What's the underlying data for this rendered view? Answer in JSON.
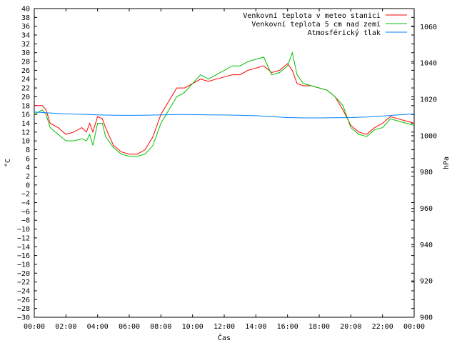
{
  "chart_data": {
    "type": "line",
    "title": "",
    "xlabel": "Čas",
    "ylabel": "°C",
    "y2label": "hPa",
    "x_ticks": [
      "00:00",
      "02:00",
      "04:00",
      "06:00",
      "08:00",
      "10:00",
      "12:00",
      "14:00",
      "16:00",
      "18:00",
      "20:00",
      "22:00",
      "00:00"
    ],
    "xlim": [
      0,
      24
    ],
    "ylim": [
      -30,
      40
    ],
    "y_ticks": [
      40,
      38,
      36,
      34,
      32,
      30,
      28,
      26,
      24,
      22,
      20,
      18,
      16,
      14,
      12,
      10,
      8,
      6,
      4,
      2,
      0,
      -2,
      -4,
      -6,
      -8,
      -10,
      -12,
      -14,
      -16,
      -18,
      -20,
      -22,
      -24,
      -26,
      -28,
      -30
    ],
    "y2lim": [
      900,
      1070
    ],
    "y2_ticks": [
      1060,
      1040,
      1020,
      1000,
      980,
      960,
      940,
      920,
      900
    ],
    "legend_position": "top-right",
    "grid": false,
    "colors": {
      "station": "#ff0000",
      "ground": "#00c000",
      "pressure": "#0080ff"
    },
    "series": [
      {
        "name": "Venkovní teplota v meteo stanici",
        "axis": "left",
        "x": [
          0,
          0.5,
          0.75,
          1,
          1.5,
          2,
          2.5,
          3,
          3.3,
          3.5,
          3.7,
          4,
          4.3,
          4.5,
          5,
          5.5,
          6,
          6.5,
          7,
          7.5,
          8,
          8.5,
          9,
          9.5,
          10,
          10.5,
          11,
          11.5,
          12,
          12.5,
          13,
          13.5,
          14,
          14.5,
          15,
          15.5,
          16,
          16.3,
          16.6,
          17,
          17.5,
          18,
          18.5,
          19,
          19.5,
          20,
          20.5,
          21,
          21.5,
          22,
          22.5,
          23,
          23.5,
          24
        ],
        "y": [
          18,
          18,
          17,
          14,
          13,
          11.5,
          12,
          13,
          12,
          14,
          12,
          15.5,
          15,
          13,
          9,
          7.5,
          7,
          7,
          8,
          11,
          16,
          19,
          22,
          22,
          23,
          24,
          23.5,
          24,
          24.5,
          25,
          25,
          26,
          26.5,
          27,
          25.5,
          26,
          27.5,
          26,
          23,
          22.5,
          22.5,
          22,
          21.5,
          20,
          17,
          13.5,
          12,
          11.5,
          13,
          14,
          15.5,
          15,
          14.5,
          14
        ]
      },
      {
        "name": "Venkovní teplota 5 cm nad zemí",
        "axis": "left",
        "x": [
          0,
          0.5,
          0.75,
          1,
          1.5,
          2,
          2.5,
          3,
          3.3,
          3.5,
          3.7,
          4,
          4.3,
          4.5,
          5,
          5.5,
          6,
          6.5,
          7,
          7.5,
          8,
          8.5,
          9,
          9.5,
          10,
          10.5,
          11,
          11.5,
          12,
          12.5,
          13,
          13.5,
          14,
          14.5,
          15,
          15.5,
          16,
          16.3,
          16.6,
          17,
          17.5,
          18,
          18.5,
          19,
          19.5,
          20,
          20.5,
          21,
          21.5,
          22,
          22.5,
          23,
          23.5,
          24
        ],
        "y": [
          16,
          17,
          16,
          13,
          11.5,
          10,
          10,
          10.5,
          10,
          11.5,
          9,
          14,
          14,
          11,
          8.5,
          7,
          6.5,
          6.5,
          7,
          9,
          14,
          17,
          20,
          21,
          23,
          25,
          24,
          25,
          26,
          27,
          27,
          28,
          28.5,
          29,
          25,
          25.5,
          27,
          30,
          25,
          23,
          22.5,
          22,
          21.5,
          20,
          18,
          13,
          11.5,
          11,
          12.5,
          13,
          15,
          14.5,
          14,
          13.5
        ]
      },
      {
        "name": "Atmosférický tlak",
        "axis": "right",
        "x": [
          0,
          1,
          2,
          3,
          4,
          5,
          6,
          7,
          8,
          9,
          10,
          11,
          12,
          13,
          14,
          15,
          16,
          17,
          18,
          19,
          20,
          21,
          22,
          23,
          24
        ],
        "y": [
          1013,
          1012.5,
          1012,
          1011.8,
          1011.5,
          1011.3,
          1011.2,
          1011.3,
          1011.5,
          1011.7,
          1011.6,
          1011.5,
          1011.4,
          1011.2,
          1011,
          1010.5,
          1010,
          1009.8,
          1009.8,
          1009.9,
          1010,
          1010.3,
          1010.8,
          1011.5,
          1012
        ]
      }
    ]
  }
}
